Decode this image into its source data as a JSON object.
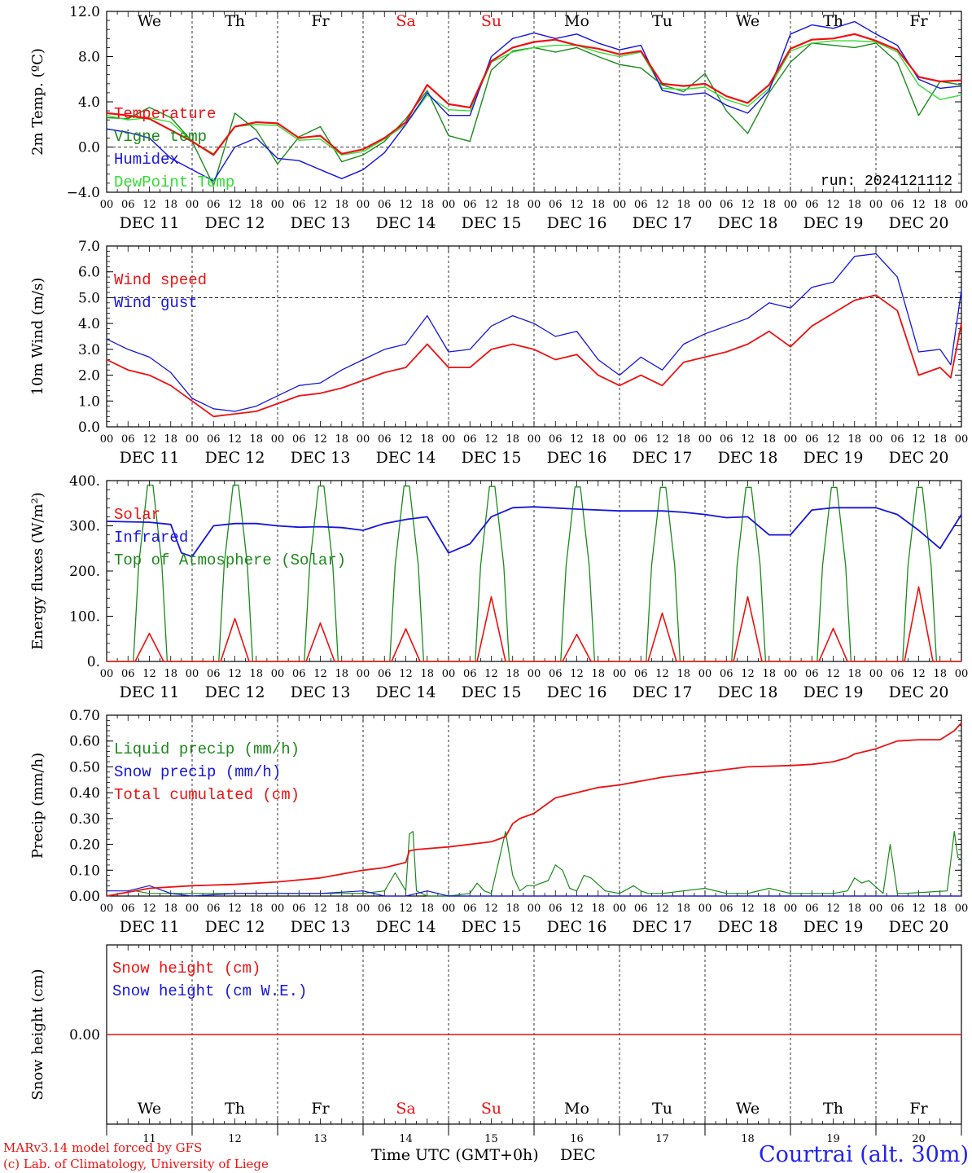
{
  "colors": {
    "red": "#ee1111",
    "dark_green": "#1a8a1a",
    "blue": "#1515dd",
    "light_green": "#33dd33",
    "axis": "#000000",
    "weekend": "#ee1111",
    "station": "#2222ee"
  },
  "time_axis": {
    "hour_labels": [
      "00",
      "06",
      "12",
      "18"
    ],
    "final_hour_label": "00",
    "days": [
      "DEC 11",
      "DEC 12",
      "DEC 13",
      "DEC 14",
      "DEC 15",
      "DEC 16",
      "DEC 17",
      "DEC 18",
      "DEC 19",
      "DEC 20"
    ],
    "weekdays": [
      "We",
      "Th",
      "Fr",
      "Sa",
      "Su",
      "Mo",
      "Tu",
      "We",
      "Th",
      "Fr"
    ],
    "weekend_flags": [
      false,
      false,
      false,
      true,
      true,
      false,
      false,
      false,
      false,
      false
    ],
    "day_numbers": [
      "11",
      "12",
      "13",
      "14",
      "15",
      "16",
      "17",
      "18",
      "19",
      "20"
    ],
    "xlabel": "Time UTC (GMT+0h)",
    "month": "DEC"
  },
  "footer": {
    "line1": "MARv3.14 model forced by GFS",
    "line2": "(c) Lab. of Climatology, University of Liege",
    "station": "Courtrai (alt. 30m)"
  },
  "chart_data": [
    {
      "type": "line",
      "id": "temp",
      "ylabel": "2m Temp. (ºC)",
      "ylim": [
        -4,
        12
      ],
      "yticks": [
        -4,
        0,
        4,
        8,
        12
      ],
      "ytick_labels": [
        "−4.0",
        "0.0",
        "4.0",
        "8.0",
        "12.0"
      ],
      "annotation": "run: 2024121112",
      "ref_line": 0,
      "x_hours": [
        0,
        6,
        12,
        18,
        24,
        30,
        36,
        42,
        48,
        54,
        60,
        66,
        72,
        78,
        84,
        90,
        96,
        102,
        108,
        114,
        120,
        126,
        132,
        138,
        144,
        150,
        156,
        162,
        168,
        174,
        180,
        186,
        192,
        198,
        204,
        210,
        216,
        222,
        228,
        234,
        240
      ],
      "series": [
        {
          "name": "Temperature",
          "color_key": "red",
          "values": [
            3.0,
            2.8,
            2.5,
            1.5,
            0.5,
            -0.7,
            1.8,
            2.2,
            2.1,
            0.8,
            1.0,
            -0.6,
            -0.2,
            0.8,
            2.2,
            5.5,
            3.8,
            3.5,
            7.6,
            8.8,
            9.3,
            9.5,
            9.0,
            8.7,
            8.2,
            8.5,
            5.6,
            5.4,
            5.6,
            4.5,
            3.9,
            5.5,
            8.7,
            9.5,
            9.6,
            10.0,
            9.4,
            8.6,
            6.2,
            5.8,
            5.9
          ]
        },
        {
          "name": "Vigne temp",
          "color_key": "dark_green",
          "values": [
            2.6,
            2.5,
            3.5,
            2.6,
            0.5,
            -3.4,
            3.0,
            1.5,
            -1.5,
            0.9,
            1.8,
            -1.3,
            -0.7,
            0.5,
            2.5,
            5.0,
            1.0,
            0.5,
            6.8,
            8.5,
            8.8,
            8.4,
            8.8,
            8.0,
            7.3,
            7.0,
            5.5,
            4.9,
            6.5,
            3.2,
            1.2,
            4.8,
            7.5,
            9.2,
            9.0,
            8.8,
            9.2,
            7.5,
            2.8,
            5.8,
            5.5
          ]
        },
        {
          "name": "Humidex",
          "color_key": "blue",
          "values": [
            1.6,
            1.3,
            0.8,
            -1.0,
            -2.0,
            -3.0,
            0.0,
            0.8,
            -1.0,
            -1.2,
            -2.0,
            -2.8,
            -2.0,
            -0.5,
            2.0,
            4.8,
            2.8,
            2.8,
            8.0,
            9.6,
            10.1,
            9.6,
            10.0,
            9.2,
            8.6,
            9.0,
            5.0,
            4.6,
            4.8,
            3.7,
            3.0,
            5.0,
            10.0,
            10.8,
            10.5,
            11.1,
            10.0,
            9.0,
            6.0,
            5.2,
            5.4
          ]
        },
        {
          "name": "DewPoint Temp",
          "color_key": "light_green",
          "values": [
            2.8,
            2.4,
            2.6,
            2.2,
            0.5,
            -0.6,
            1.8,
            2.0,
            1.9,
            0.6,
            0.7,
            -0.7,
            -0.4,
            0.7,
            2.0,
            4.6,
            3.3,
            3.2,
            7.5,
            8.4,
            8.8,
            9.0,
            9.0,
            8.4,
            8.0,
            8.4,
            5.2,
            5.1,
            5.3,
            4.2,
            3.6,
            5.2,
            8.5,
            9.2,
            9.4,
            9.4,
            9.3,
            8.4,
            5.5,
            4.2,
            4.6
          ]
        }
      ]
    },
    {
      "type": "line",
      "id": "wind",
      "ylabel": "10m Wind (m/s)",
      "ylim": [
        0,
        7
      ],
      "yticks": [
        0,
        1,
        2,
        3,
        4,
        5,
        6,
        7
      ],
      "ytick_labels": [
        "0.0",
        "1.0",
        "2.0",
        "3.0",
        "4.0",
        "5.0",
        "6.0",
        "7.0"
      ],
      "ref_line": 5,
      "x_hours": [
        0,
        6,
        12,
        18,
        24,
        30,
        36,
        42,
        48,
        54,
        60,
        66,
        72,
        78,
        84,
        90,
        96,
        102,
        108,
        114,
        120,
        126,
        132,
        138,
        144,
        150,
        156,
        162,
        168,
        174,
        180,
        186,
        192,
        198,
        204,
        210,
        216,
        222,
        228,
        234,
        237,
        240
      ],
      "series": [
        {
          "name": "Wind speed",
          "color_key": "red",
          "values": [
            2.6,
            2.2,
            2.0,
            1.6,
            1.0,
            0.4,
            0.5,
            0.6,
            0.9,
            1.2,
            1.3,
            1.5,
            1.8,
            2.1,
            2.3,
            3.2,
            2.3,
            2.3,
            3.0,
            3.2,
            3.0,
            2.6,
            2.8,
            2.0,
            1.6,
            2.0,
            1.6,
            2.5,
            2.7,
            2.9,
            3.2,
            3.7,
            3.1,
            3.9,
            4.4,
            4.9,
            5.1,
            4.5,
            2.0,
            2.3,
            1.9,
            4.0
          ]
        },
        {
          "name": "Wind gust",
          "color_key": "blue",
          "values": [
            3.4,
            3.0,
            2.7,
            2.1,
            1.1,
            0.7,
            0.6,
            0.8,
            1.2,
            1.6,
            1.7,
            2.2,
            2.6,
            3.0,
            3.2,
            4.3,
            2.9,
            3.0,
            3.9,
            4.3,
            4.0,
            3.5,
            3.7,
            2.6,
            2.0,
            2.7,
            2.2,
            3.2,
            3.6,
            3.9,
            4.2,
            4.8,
            4.6,
            5.4,
            5.6,
            6.6,
            6.7,
            5.8,
            2.9,
            3.0,
            2.4,
            5.3
          ]
        }
      ]
    },
    {
      "type": "line",
      "id": "energy",
      "ylabel": "Energy fluxes (W/m²)",
      "ylim": [
        0,
        400
      ],
      "yticks": [
        0,
        100,
        200,
        300,
        400
      ],
      "ytick_labels": [
        "0.",
        "100.",
        "200.",
        "300.",
        "400."
      ],
      "x_hours": [
        0,
        12,
        18,
        21,
        24,
        30,
        36,
        42,
        48,
        54,
        60,
        66,
        72,
        78,
        84,
        90,
        96,
        102,
        108,
        114,
        120,
        132,
        144,
        156,
        162,
        168,
        174,
        180,
        186,
        192,
        198,
        204,
        216,
        222,
        228,
        234,
        240
      ],
      "series": [
        {
          "name": "Solar",
          "color_key": "red",
          "peaks_wm2": [
            62,
            95,
            85,
            72,
            143,
            60,
            107,
            143,
            73,
            165
          ]
        },
        {
          "name": "Infrared",
          "color_key": "blue",
          "values": [
            310,
            308,
            303,
            240,
            232,
            300,
            305,
            305,
            300,
            297,
            298,
            296,
            290,
            305,
            314,
            320,
            240,
            260,
            320,
            340,
            342,
            337,
            333,
            333,
            330,
            325,
            318,
            320,
            280,
            280,
            335,
            340,
            340,
            325,
            290,
            250,
            325
          ]
        },
        {
          "name": "Top of Atmosphere (Solar)",
          "color_key": "dark_green",
          "peaks_wm2": [
            390,
            390,
            388,
            388,
            387,
            386,
            385,
            385,
            385,
            385
          ]
        }
      ]
    },
    {
      "type": "line",
      "id": "precip",
      "ylabel": "Precip (mm/h)",
      "ylim": [
        0,
        0.7
      ],
      "yticks": [
        0,
        0.1,
        0.2,
        0.3,
        0.4,
        0.5,
        0.6,
        0.7
      ],
      "ytick_labels": [
        "0.00",
        "0.10",
        "0.20",
        "0.30",
        "0.40",
        "0.50",
        "0.60",
        "0.70"
      ],
      "series": [
        {
          "name": "Liquid precip (mm/h)",
          "color_key": "dark_green",
          "x_hours": [
            0,
            8,
            12,
            24,
            36,
            48,
            60,
            72,
            78,
            81,
            84,
            85,
            86,
            87,
            90,
            96,
            102,
            104,
            106,
            108,
            110,
            112,
            114,
            116,
            118,
            120,
            124,
            126,
            128,
            130,
            132,
            134,
            136,
            140,
            144,
            148,
            150,
            152,
            156,
            168,
            174,
            180,
            186,
            192,
            198,
            204,
            208,
            210,
            212,
            214,
            218,
            220,
            222,
            224,
            236,
            238,
            239,
            240
          ],
          "values": [
            0,
            0.02,
            0.01,
            0.01,
            0.01,
            0.01,
            0.01,
            0.01,
            0.02,
            0.09,
            0.02,
            0.24,
            0.25,
            0.02,
            0,
            0,
            0.01,
            0.05,
            0.02,
            0.01,
            0.13,
            0.25,
            0.08,
            0.02,
            0.04,
            0.04,
            0.06,
            0.12,
            0.1,
            0.03,
            0.02,
            0.08,
            0.07,
            0.02,
            0.01,
            0.04,
            0.02,
            0.01,
            0.01,
            0.03,
            0.01,
            0.01,
            0.03,
            0.01,
            0.01,
            0.01,
            0.02,
            0.07,
            0.05,
            0.06,
            0.01,
            0.2,
            0.01,
            0.01,
            0.02,
            0.25,
            0.15,
            0.14
          ]
        },
        {
          "name": "Snow precip (mm/h)",
          "color_key": "blue",
          "x_hours": [
            0,
            6,
            12,
            18,
            24,
            36,
            48,
            60,
            72,
            78,
            84,
            90,
            96,
            102,
            108,
            114,
            120,
            168,
            216,
            240
          ],
          "values": [
            0.02,
            0.02,
            0.04,
            0.01,
            0.0,
            0.01,
            0.01,
            0.01,
            0.02,
            0.0,
            0.0,
            0.02,
            0.0,
            0.0,
            0.0,
            0.0,
            0.0,
            0.0,
            0.0,
            0.0
          ]
        },
        {
          "name": "Total cumulated (cm)",
          "color_key": "red",
          "x_hours": [
            0,
            12,
            24,
            36,
            48,
            60,
            72,
            78,
            84,
            85,
            87,
            96,
            108,
            112,
            114,
            116,
            120,
            126,
            132,
            138,
            144,
            156,
            168,
            180,
            192,
            198,
            204,
            208,
            210,
            216,
            222,
            228,
            234,
            238,
            240
          ],
          "values": [
            0.0,
            0.03,
            0.04,
            0.045,
            0.055,
            0.07,
            0.1,
            0.11,
            0.13,
            0.175,
            0.18,
            0.19,
            0.21,
            0.23,
            0.28,
            0.3,
            0.32,
            0.38,
            0.4,
            0.42,
            0.43,
            0.46,
            0.48,
            0.5,
            0.505,
            0.51,
            0.52,
            0.535,
            0.55,
            0.57,
            0.6,
            0.605,
            0.605,
            0.64,
            0.67
          ]
        }
      ]
    },
    {
      "type": "line",
      "id": "snow",
      "ylabel": "Snow height (cm)",
      "ytick_labels": [
        "0.00"
      ],
      "series": [
        {
          "name": "Snow height (cm)",
          "color_key": "red",
          "value": 0.0
        },
        {
          "name": "Snow height (cm W.E.)",
          "color_key": "blue",
          "value": 0.0
        }
      ]
    }
  ]
}
